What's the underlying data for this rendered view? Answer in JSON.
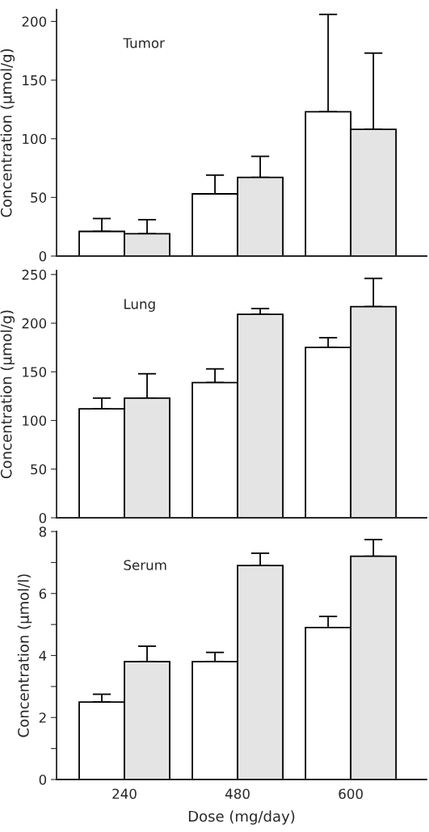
{
  "chart_data": [
    {
      "type": "bar",
      "annotations": [
        "Tumor"
      ],
      "ylabel": "Concentration (µmol/g)",
      "categories": [
        "240",
        "480",
        "600"
      ],
      "series": [
        {
          "color": "#ffffff",
          "values": [
            21,
            53,
            123
          ],
          "errors": [
            [
              21,
              32
            ],
            [
              53,
              69
            ],
            [
              123,
              206
            ]
          ]
        },
        {
          "color": "#e4e4e4",
          "values": [
            19,
            67,
            108
          ],
          "errors": [
            [
              19,
              31
            ],
            [
              67,
              85
            ],
            [
              108,
              173
            ]
          ]
        }
      ],
      "ylim": [
        0,
        210
      ],
      "yticks": [
        0,
        50,
        100,
        150,
        200
      ],
      "tick_labels": "y",
      "grid": false,
      "legend": false
    },
    {
      "type": "bar",
      "annotations": [
        "Lung"
      ],
      "ylabel": "Concentration (µmol/g)",
      "categories": [
        "240",
        "480",
        "600"
      ],
      "series": [
        {
          "color": "#ffffff",
          "values": [
            112,
            139,
            175
          ],
          "errors": [
            [
              112,
              123
            ],
            [
              139,
              153
            ],
            [
              175,
              185
            ]
          ]
        },
        {
          "color": "#e4e4e4",
          "values": [
            123,
            209,
            217
          ],
          "errors": [
            [
              123,
              148
            ],
            [
              209,
              215
            ],
            [
              217,
              246
            ]
          ]
        }
      ],
      "ylim": [
        0,
        254
      ],
      "yticks": [
        0,
        50,
        100,
        150,
        200,
        250
      ],
      "tick_labels": "y",
      "grid": false,
      "legend": false
    },
    {
      "type": "bar",
      "annotations": [
        "Serum"
      ],
      "ylabel": "Concentration (µmol/l)",
      "xlabel": "Dose (mg/day)",
      "categories": [
        "240",
        "480",
        "600"
      ],
      "series": [
        {
          "color": "#ffffff",
          "values": [
            2.5,
            3.8,
            4.9
          ],
          "errors": [
            [
              2.5,
              2.75
            ],
            [
              3.8,
              4.1
            ],
            [
              4.9,
              5.26
            ]
          ]
        },
        {
          "color": "#e4e4e4",
          "values": [
            3.8,
            6.9,
            7.2
          ],
          "errors": [
            [
              3.8,
              4.3
            ],
            [
              6.9,
              7.3
            ],
            [
              7.2,
              7.74
            ]
          ]
        }
      ],
      "ylim": [
        0,
        8
      ],
      "yticks": [
        0,
        {
          "value": 1,
          "label": null
        },
        2,
        {
          "value": 3,
          "label": null
        },
        4,
        {
          "value": 5,
          "label": null
        },
        6,
        {
          "value": 7,
          "label": null
        },
        8
      ],
      "grid": false,
      "legend": false
    }
  ]
}
